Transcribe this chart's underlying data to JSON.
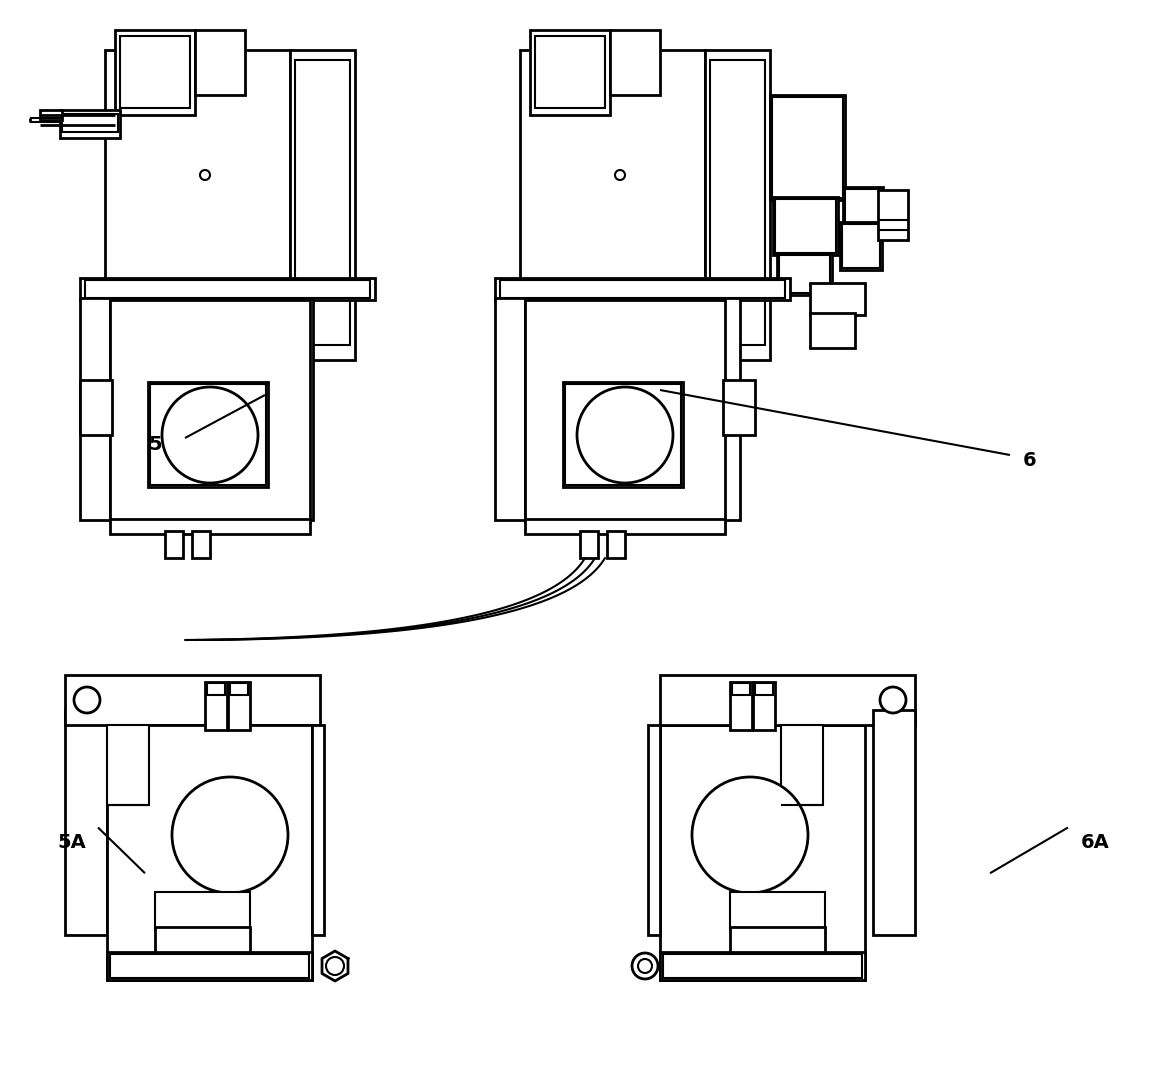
{
  "background_color": "#ffffff",
  "line_color": "#000000",
  "line_width": 1.5
}
